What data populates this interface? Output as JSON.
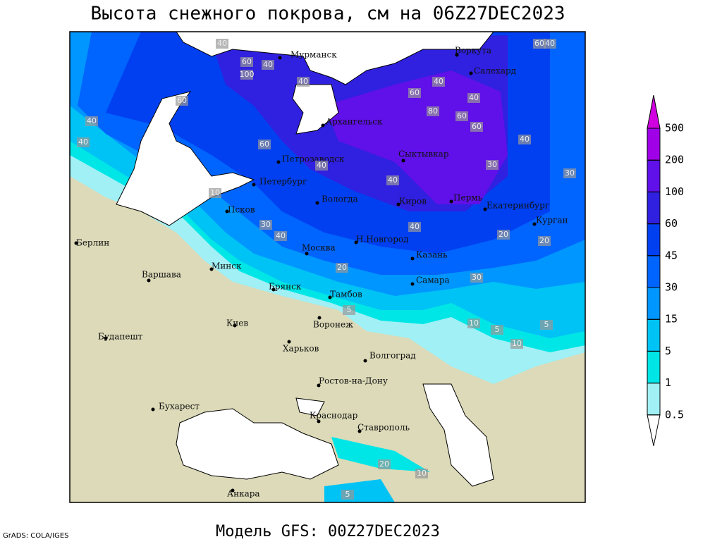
{
  "header": {
    "title": "Высота снежного покрова, см на 06Z27DEC2023"
  },
  "footer": {
    "model": "Модель GFS: 00Z27DEC2023",
    "credit": "GrADS: COLA/IGES"
  },
  "legend": {
    "levels": [
      0.5,
      1,
      5,
      15,
      30,
      45,
      60,
      100,
      200,
      500
    ],
    "colors": [
      "#ffffff",
      "#a0f0f5",
      "#00e6e6",
      "#00c3f5",
      "#0096ff",
      "#0064ff",
      "#0040f0",
      "#3020e0",
      "#6010e8",
      "#a000e8",
      "#d000e0"
    ]
  },
  "cities": [
    "Мурманск",
    "Воркута",
    "Салехард",
    "Архангельск",
    "Петрозаводск",
    "Сыктывкар",
    "Петербург",
    "Вологда",
    "Киров",
    "Пермь",
    "Екатеринбург",
    "Курган",
    "Псков",
    "Берлин",
    "Москва",
    "Н.Новгород",
    "Казань",
    "Минск",
    "Варшава",
    "Брянск",
    "Тамбов",
    "Самара",
    "Киев",
    "Воронеж",
    "Будапешт",
    "Харьков",
    "Волгоград",
    "Ростов-на-Дону",
    "Бухарест",
    "Краснодар",
    "Ставрополь",
    "Анкара"
  ],
  "contour_labels": [
    40,
    60,
    100,
    40,
    40,
    60,
    40,
    40,
    60,
    60,
    80,
    60,
    60,
    40,
    40,
    30,
    40,
    30,
    10,
    40,
    40,
    40,
    40,
    30,
    20,
    20,
    30,
    20,
    5,
    10,
    5,
    10,
    5,
    20,
    10,
    5,
    60,
    40
  ]
}
